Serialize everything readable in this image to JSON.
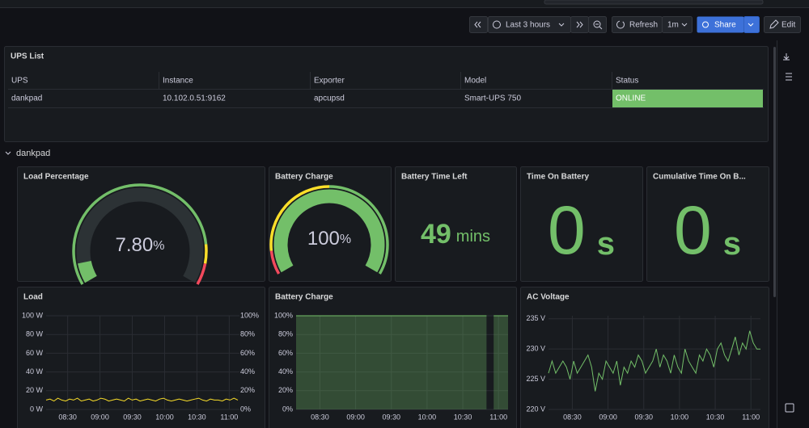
{
  "toolbar": {
    "time_range": "Last 3 hours",
    "refresh": "Refresh",
    "interval": "1m",
    "share": "Share",
    "edit": "Edit"
  },
  "table": {
    "title": "UPS List",
    "columns": [
      "UPS",
      "Instance",
      "Exporter",
      "Model",
      "Status"
    ],
    "rows": [
      [
        "dankpad",
        "10.102.0.51:9162",
        "apcupsd",
        "Smart-UPS 750",
        "ONLINE"
      ]
    ],
    "status_color": "#73bf69"
  },
  "row_title": "dankpad",
  "gauges": [
    {
      "type": "gauge",
      "title": "Load Percentage",
      "value": 7.8,
      "value_label": "7.80",
      "unit": "%",
      "min": 0,
      "max": 100,
      "color": "#73bf69",
      "thresholds": [
        {
          "value": 0,
          "color": "#73bf69"
        },
        {
          "value": 85,
          "color": "#fade2a"
        },
        {
          "value": 92,
          "color": "#f2495c"
        }
      ]
    },
    {
      "type": "gauge",
      "title": "Battery Charge",
      "value": 100,
      "unit": "%",
      "min": 0,
      "max": 100,
      "color": "#73bf69",
      "thresholds": [
        {
          "value": 0,
          "color": "#f2495c"
        },
        {
          "value": 10,
          "color": "#fade2a"
        },
        {
          "value": 50,
          "color": "#73bf69"
        }
      ]
    }
  ],
  "stats": [
    {
      "type": "stat",
      "title": "Battery Time Left",
      "value": 49,
      "unit": "mins",
      "color": "#73bf69",
      "size": "medium"
    },
    {
      "type": "stat",
      "title": "Time On Battery",
      "value": 0,
      "unit": "s",
      "color": "#73bf69",
      "size": "large"
    },
    {
      "type": "stat",
      "title": "Cumulative Time On B...",
      "value": 0,
      "unit": "s",
      "color": "#73bf69",
      "size": "large"
    }
  ],
  "timeseries": [
    {
      "type": "line",
      "title": "Load",
      "xlim": [
        "08:10",
        "11:08"
      ],
      "xticks": [
        "08:30",
        "09:00",
        "09:30",
        "10:00",
        "10:30",
        "11:00"
      ],
      "ylim": [
        0,
        100
      ],
      "yticks": [
        {
          "value": 0,
          "label": "0 W"
        },
        {
          "value": 20,
          "label": "20 W"
        },
        {
          "value": 40,
          "label": "40 W"
        },
        {
          "value": 60,
          "label": "60 W"
        },
        {
          "value": 80,
          "label": "80 W"
        },
        {
          "value": 100,
          "label": "100 W"
        }
      ],
      "y2lim": [
        0,
        100
      ],
      "y2ticks": [
        {
          "value": 0,
          "label": "0%"
        },
        {
          "value": 20,
          "label": "20%"
        },
        {
          "value": 40,
          "label": "40%"
        },
        {
          "value": 60,
          "label": "60%"
        },
        {
          "value": 80,
          "label": "80%"
        },
        {
          "value": 100,
          "label": "100%"
        }
      ],
      "grid": true,
      "series": [
        {
          "color": "#fade2a",
          "fill": false,
          "values": [
            10,
            11,
            9,
            12,
            10,
            9,
            11,
            10,
            12,
            9,
            10,
            11,
            9,
            10,
            12,
            11,
            9,
            10,
            11,
            10,
            9,
            12,
            10,
            11,
            9,
            10,
            11,
            10,
            9,
            11,
            12,
            10,
            9,
            10,
            11,
            10,
            9,
            10,
            11,
            12,
            10,
            9,
            11,
            10,
            10,
            9,
            11,
            10,
            12,
            10
          ]
        }
      ]
    },
    {
      "type": "area",
      "title": "Battery Charge",
      "xlim": [
        "08:10",
        "11:08"
      ],
      "xticks": [
        "08:30",
        "09:00",
        "09:30",
        "10:00",
        "10:30",
        "11:00"
      ],
      "ylim": [
        0,
        100
      ],
      "yticks": [
        {
          "value": 0,
          "label": "0%"
        },
        {
          "value": 20,
          "label": "20%"
        },
        {
          "value": 40,
          "label": "40%"
        },
        {
          "value": 60,
          "label": "60%"
        },
        {
          "value": 80,
          "label": "80%"
        },
        {
          "value": 100,
          "label": "100%"
        }
      ],
      "grid": true,
      "series": [
        {
          "color": "#73bf69",
          "fill": true,
          "values": [
            100,
            100,
            100,
            100,
            100,
            100,
            100,
            100,
            100,
            100,
            100,
            100,
            100,
            100,
            100,
            100,
            100,
            100,
            100,
            100,
            100,
            100,
            100,
            100,
            100,
            100,
            100,
            100,
            100,
            100,
            100,
            100,
            100,
            100,
            100,
            100,
            100,
            100,
            100,
            100,
            100,
            100,
            100,
            100,
            100,
            100,
            100,
            100,
            100,
            100,
            100,
            100,
            100,
            100,
            null,
            100,
            100,
            100,
            100,
            100
          ]
        }
      ]
    },
    {
      "type": "line",
      "title": "AC Voltage",
      "xlim": [
        "08:10",
        "11:08"
      ],
      "xticks": [
        "08:30",
        "09:00",
        "09:30",
        "10:00",
        "10:30",
        "11:00"
      ],
      "ylim": [
        220,
        235.5
      ],
      "yticks": [
        {
          "value": 220,
          "label": "220 V"
        },
        {
          "value": 225,
          "label": "225 V"
        },
        {
          "value": 230,
          "label": "230 V"
        },
        {
          "value": 235,
          "label": "235 V"
        }
      ],
      "grid": true,
      "series": [
        {
          "color": "#73bf69",
          "fill": false,
          "values": [
            226,
            228,
            226,
            227,
            228,
            227,
            225,
            228,
            226,
            227,
            228,
            229,
            227,
            223,
            226,
            225,
            228,
            227,
            226,
            228,
            224,
            227,
            226,
            228,
            227,
            229,
            228,
            226,
            227,
            228,
            230,
            227,
            229,
            228,
            226,
            229,
            227,
            226,
            230,
            228,
            227,
            226,
            229,
            228,
            230,
            229,
            227,
            230,
            231,
            229,
            228,
            230,
            232,
            229,
            231,
            230,
            233,
            231,
            230,
            230
          ]
        }
      ]
    }
  ]
}
